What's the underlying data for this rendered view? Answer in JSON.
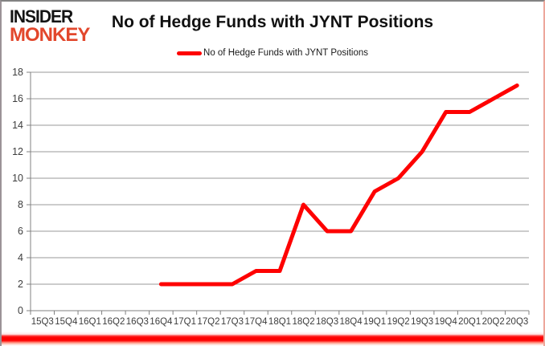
{
  "logo": {
    "line1": "INSIDER",
    "line2": "MONKEY"
  },
  "header": {
    "title": "No of Hedge Funds with JYNT Positions"
  },
  "legend": {
    "label": "No of Hedge Funds with JYNT Positions",
    "line_color": "#fe0000"
  },
  "chart_data": {
    "type": "line",
    "title": "No of Hedge Funds with JYNT Positions",
    "xlabel": "",
    "ylabel": "",
    "categories": [
      "15Q3",
      "15Q4",
      "16Q1",
      "16Q2",
      "16Q3",
      "16Q4",
      "17Q1",
      "17Q2",
      "17Q3",
      "17Q4",
      "18Q1",
      "18Q2",
      "18Q3",
      "18Q4",
      "19Q1",
      "19Q2",
      "19Q3",
      "19Q4",
      "20Q1",
      "20Q2",
      "20Q3"
    ],
    "series": [
      {
        "name": "No of Hedge Funds with JYNT Positions",
        "color": "#fe0000",
        "values": [
          null,
          null,
          null,
          null,
          null,
          2,
          2,
          2,
          2,
          3,
          3,
          8,
          6,
          6,
          9,
          10,
          12,
          15,
          15,
          16,
          17
        ]
      }
    ],
    "ylim": [
      0,
      18
    ],
    "ytick_step": 2,
    "grid": true,
    "legend_position": "top-center",
    "colors": {
      "grid": "#9a9a9a",
      "axis": "#808080",
      "tick_label": "#3d3d3d"
    }
  }
}
